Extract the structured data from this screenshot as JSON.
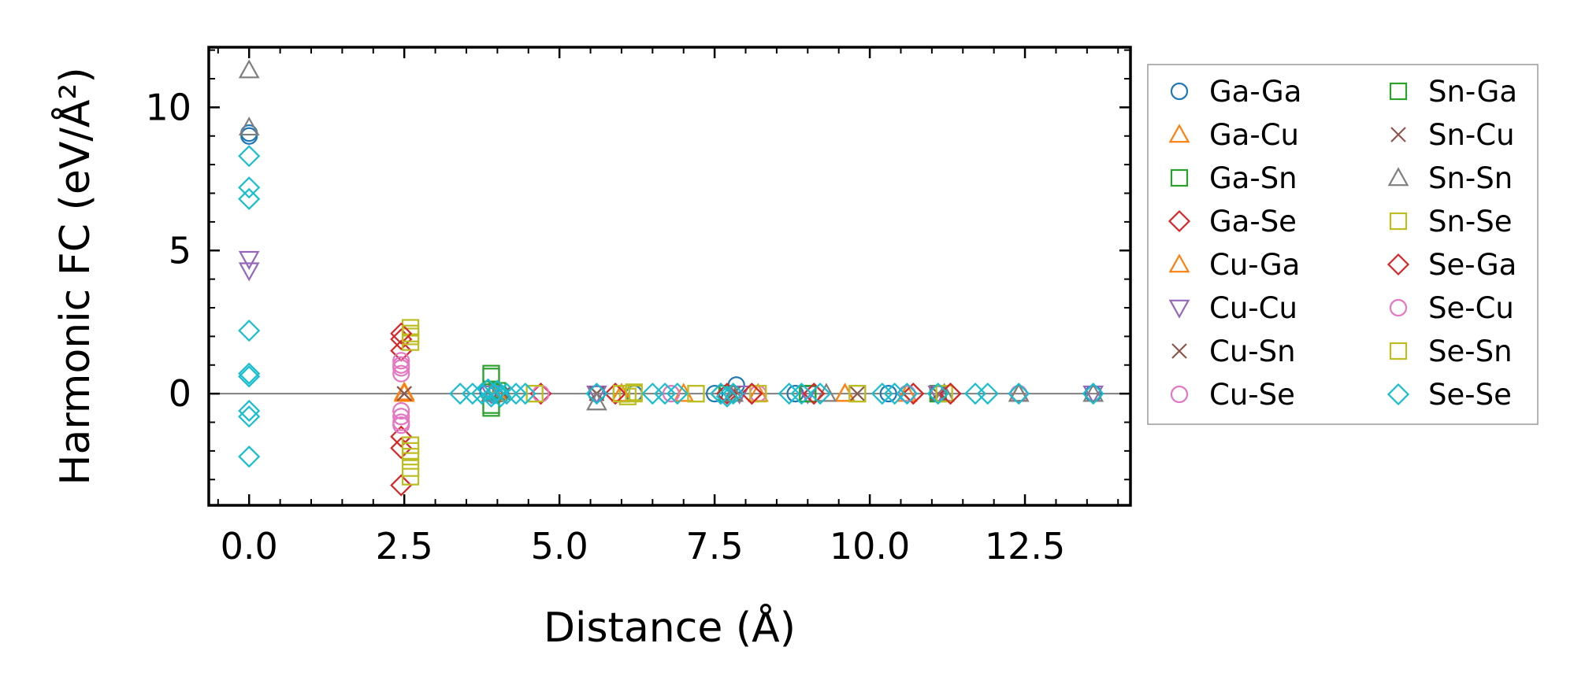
{
  "chart_data": {
    "type": "scatter",
    "xlabel": "Distance (Å)",
    "ylabel": "Harmonic FC (eV/Å²)",
    "xlim": [
      -0.65,
      14.2
    ],
    "ylim": [
      -3.9,
      12.1
    ],
    "xticks": [
      0.0,
      2.5,
      5.0,
      7.5,
      10.0,
      12.5
    ],
    "xtick_labels": [
      "0.0",
      "2.5",
      "5.0",
      "7.5",
      "10.0",
      "12.5"
    ],
    "yticks": [
      0,
      5,
      10
    ],
    "ytick_labels": [
      "0",
      "5",
      "10"
    ],
    "zero_line": true,
    "legend_position": "outside-right",
    "series": [
      {
        "name": "Ga-Ga",
        "marker": "circle",
        "color": "#1f77b4",
        "points": [
          [
            0,
            9.1
          ],
          [
            0,
            9.0
          ],
          [
            3.85,
            0.05
          ],
          [
            3.95,
            -0.05
          ],
          [
            4.05,
            0.0
          ],
          [
            5.6,
            0.0
          ],
          [
            6.2,
            0.0
          ],
          [
            7.5,
            0.0
          ],
          [
            7.85,
            0.3
          ],
          [
            8.8,
            0.0
          ],
          [
            10.3,
            0.0
          ],
          [
            11.1,
            0.0
          ],
          [
            12.4,
            0.0
          ],
          [
            13.6,
            0.0
          ]
        ]
      },
      {
        "name": "Ga-Cu",
        "marker": "triangle-up",
        "color": "#ff7f0e",
        "points": [
          [
            2.5,
            0.05
          ],
          [
            4.0,
            0.0
          ],
          [
            6.0,
            0.0
          ],
          [
            7.0,
            0.0
          ],
          [
            8.2,
            0.0
          ],
          [
            9.6,
            0.0
          ],
          [
            10.6,
            0.0
          ],
          [
            12.4,
            0.0
          ]
        ]
      },
      {
        "name": "Ga-Sn",
        "marker": "square",
        "color": "#2ca02c",
        "points": [
          [
            3.9,
            0.7
          ],
          [
            3.9,
            -0.5
          ],
          [
            4.0,
            0.1
          ],
          [
            6.0,
            0.0
          ],
          [
            7.7,
            0.0
          ],
          [
            9.0,
            0.0
          ],
          [
            11.1,
            0.0
          ]
        ]
      },
      {
        "name": "Ga-Se",
        "marker": "diamond",
        "color": "#d62728",
        "points": [
          [
            2.45,
            1.9
          ],
          [
            2.45,
            1.5
          ],
          [
            2.45,
            -1.5
          ],
          [
            2.45,
            -1.9
          ],
          [
            4.7,
            0.0
          ],
          [
            5.9,
            0.0
          ],
          [
            7.7,
            0.0
          ],
          [
            8.1,
            0.0
          ],
          [
            9.1,
            0.0
          ],
          [
            10.7,
            0.0
          ],
          [
            11.3,
            0.0
          ]
        ]
      },
      {
        "name": "Cu-Ga",
        "marker": "triangle-up",
        "color": "#ff7f0e",
        "points": [
          [
            2.5,
            0.0
          ],
          [
            4.0,
            0.0
          ],
          [
            6.0,
            0.0
          ],
          [
            9.6,
            0.0
          ],
          [
            12.4,
            0.0
          ]
        ]
      },
      {
        "name": "Cu-Cu",
        "marker": "triangle-down",
        "color": "#9467bd",
        "points": [
          [
            0,
            4.7
          ],
          [
            0,
            4.3
          ],
          [
            3.9,
            0.0
          ],
          [
            5.6,
            0.0
          ],
          [
            7.9,
            0.0
          ],
          [
            9.0,
            0.0
          ],
          [
            11.1,
            0.0
          ],
          [
            13.6,
            0.0
          ]
        ]
      },
      {
        "name": "Cu-Sn",
        "marker": "x",
        "color": "#8c564b",
        "points": [
          [
            2.5,
            0.0
          ],
          [
            4.1,
            0.0
          ],
          [
            5.6,
            0.0
          ],
          [
            7.8,
            0.0
          ],
          [
            9.8,
            0.0
          ],
          [
            11.1,
            0.0
          ]
        ]
      },
      {
        "name": "Cu-Se",
        "marker": "circle",
        "color": "#e377c2",
        "points": [
          [
            2.45,
            1.15
          ],
          [
            2.45,
            0.9
          ],
          [
            2.45,
            0.7
          ],
          [
            2.45,
            -0.6
          ],
          [
            2.45,
            -0.8
          ],
          [
            2.45,
            -1.1
          ],
          [
            4.7,
            0.0
          ],
          [
            6.8,
            0.0
          ],
          [
            8.2,
            0.0
          ],
          [
            10.6,
            0.0
          ],
          [
            12.4,
            0.0
          ]
        ]
      },
      {
        "name": "Sn-Ga",
        "marker": "square",
        "color": "#2ca02c",
        "points": [
          [
            3.9,
            0.6
          ],
          [
            3.9,
            -0.4
          ],
          [
            6.0,
            0.0
          ],
          [
            9.0,
            0.0
          ]
        ]
      },
      {
        "name": "Sn-Cu",
        "marker": "x",
        "color": "#8c564b",
        "points": [
          [
            2.5,
            0.0
          ],
          [
            4.0,
            0.0
          ],
          [
            5.6,
            0.0
          ],
          [
            7.8,
            0.0
          ]
        ]
      },
      {
        "name": "Sn-Sn",
        "marker": "triangle-up",
        "color": "#7f7f7f",
        "points": [
          [
            0,
            11.3
          ],
          [
            0,
            9.3
          ],
          [
            3.9,
            0.0
          ],
          [
            5.6,
            -0.3
          ],
          [
            7.8,
            0.0
          ],
          [
            9.3,
            0.0
          ],
          [
            11.2,
            0.0
          ],
          [
            12.4,
            0.0
          ],
          [
            13.6,
            0.0
          ]
        ]
      },
      {
        "name": "Sn-Se",
        "marker": "square",
        "color": "#bcbd22",
        "points": [
          [
            2.6,
            2.3
          ],
          [
            2.6,
            2.0
          ],
          [
            2.6,
            1.8
          ],
          [
            2.6,
            -1.8
          ],
          [
            2.6,
            -2.2
          ],
          [
            2.6,
            -2.6
          ],
          [
            4.6,
            0.0
          ],
          [
            6.0,
            0.0
          ],
          [
            6.1,
            -0.1
          ],
          [
            6.2,
            0.05
          ],
          [
            7.2,
            0.0
          ],
          [
            8.2,
            0.0
          ],
          [
            9.8,
            0.0
          ],
          [
            11.2,
            0.0
          ]
        ]
      },
      {
        "name": "Se-Ga",
        "marker": "diamond",
        "color": "#d62728",
        "points": [
          [
            2.45,
            2.1
          ],
          [
            2.45,
            -3.2
          ],
          [
            4.7,
            0.0
          ],
          [
            5.9,
            0.0
          ],
          [
            7.6,
            0.0
          ],
          [
            8.1,
            0.0
          ],
          [
            9.1,
            0.0
          ],
          [
            10.7,
            0.0
          ],
          [
            11.3,
            0.0
          ]
        ]
      },
      {
        "name": "Se-Cu",
        "marker": "circle",
        "color": "#e377c2",
        "points": [
          [
            2.45,
            1.0
          ],
          [
            2.45,
            -1.0
          ],
          [
            4.7,
            0.0
          ],
          [
            6.8,
            0.0
          ],
          [
            10.6,
            0.0
          ]
        ]
      },
      {
        "name": "Se-Sn",
        "marker": "square",
        "color": "#bcbd22",
        "points": [
          [
            2.6,
            2.1
          ],
          [
            2.6,
            -2.0
          ],
          [
            2.6,
            -2.9
          ],
          [
            4.6,
            0.0
          ],
          [
            6.0,
            0.0
          ],
          [
            6.2,
            0.0
          ],
          [
            7.2,
            0.0
          ],
          [
            9.8,
            0.0
          ]
        ]
      },
      {
        "name": "Se-Se",
        "marker": "diamond",
        "color": "#17becf",
        "points": [
          [
            0,
            8.3
          ],
          [
            0,
            7.2
          ],
          [
            0,
            6.8
          ],
          [
            0,
            2.2
          ],
          [
            0,
            0.7
          ],
          [
            0,
            0.6
          ],
          [
            0,
            -0.6
          ],
          [
            0,
            -0.8
          ],
          [
            0,
            -2.2
          ],
          [
            3.4,
            0.0
          ],
          [
            3.6,
            0.0
          ],
          [
            3.75,
            0.0
          ],
          [
            3.85,
            0.15
          ],
          [
            3.9,
            -0.1
          ],
          [
            3.95,
            0.0
          ],
          [
            4.0,
            0.1
          ],
          [
            4.05,
            -0.1
          ],
          [
            4.15,
            0.0
          ],
          [
            4.3,
            0.0
          ],
          [
            4.45,
            0.0
          ],
          [
            5.6,
            0.0
          ],
          [
            6.5,
            0.0
          ],
          [
            6.7,
            0.0
          ],
          [
            6.9,
            0.0
          ],
          [
            7.6,
            0.0
          ],
          [
            7.7,
            -0.1
          ],
          [
            7.8,
            0.0
          ],
          [
            8.7,
            0.0
          ],
          [
            8.9,
            0.0
          ],
          [
            9.2,
            0.0
          ],
          [
            10.2,
            0.0
          ],
          [
            10.4,
            0.0
          ],
          [
            10.6,
            0.0
          ],
          [
            11.1,
            0.0
          ],
          [
            11.7,
            0.0
          ],
          [
            11.9,
            0.0
          ],
          [
            12.4,
            0.0
          ],
          [
            13.6,
            0.0
          ]
        ]
      }
    ]
  }
}
